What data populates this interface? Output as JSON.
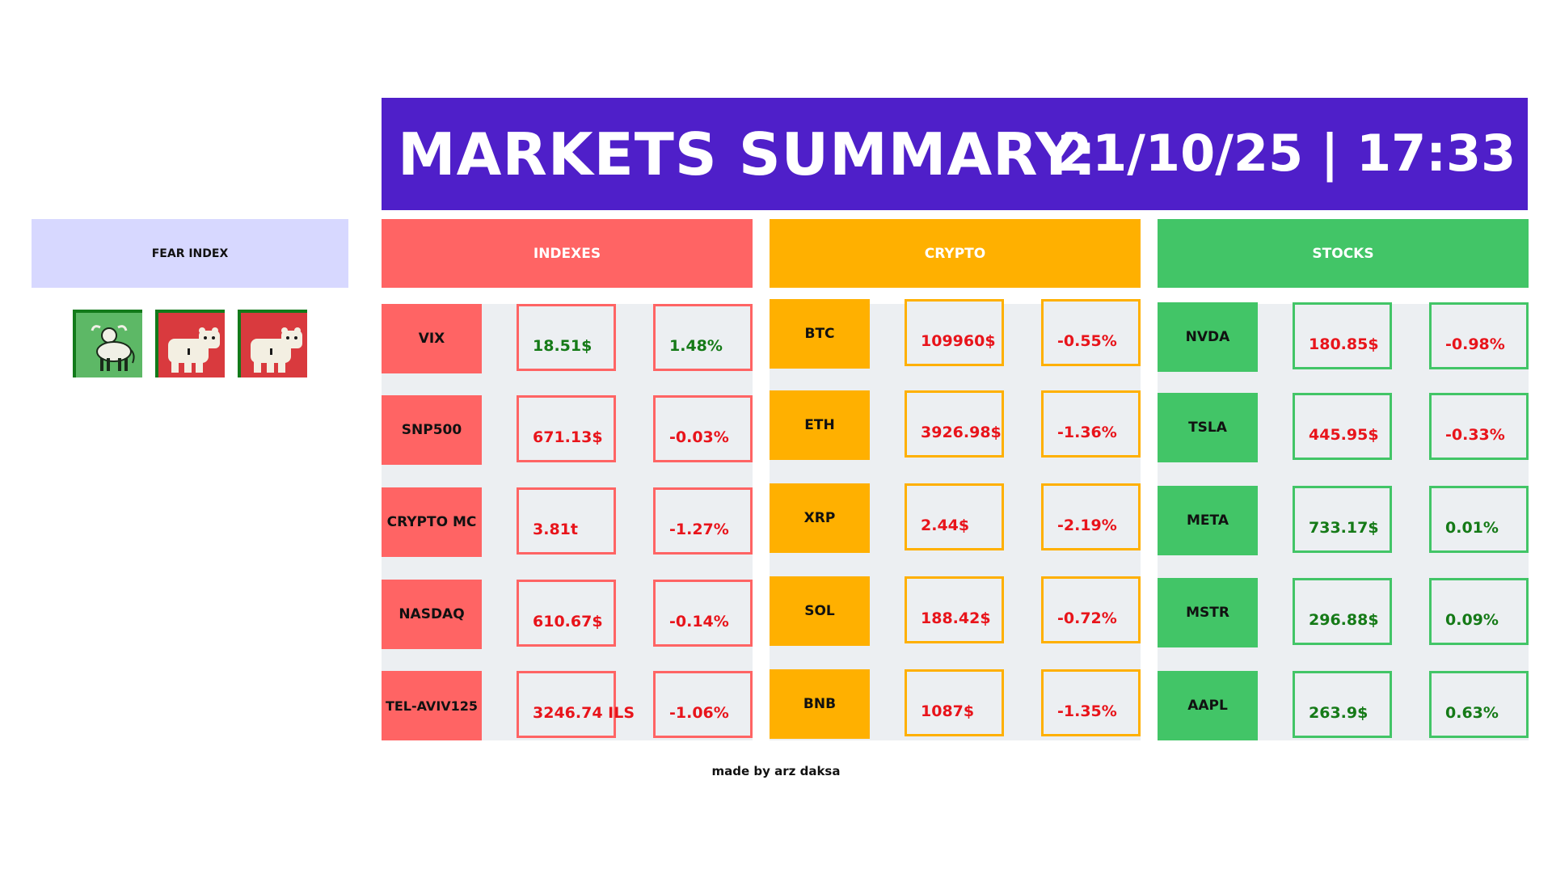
{
  "header": {
    "title": "MARKETS SUMMARY:",
    "datetime": "21/10/25 | 17:33"
  },
  "fear_index": {
    "label": "FEAR INDEX",
    "icons": [
      {
        "name": "bull-icon",
        "color": "#5db866"
      },
      {
        "name": "bear-icon",
        "color": "#d93a3e"
      },
      {
        "name": "bear-icon",
        "color": "#d93a3e"
      }
    ]
  },
  "sections": [
    {
      "title": "INDEXES",
      "color": "#ff6464",
      "rows": [
        {
          "name": "VIX",
          "price": "18.51$",
          "change": "1.48%",
          "price_dir": "up",
          "change_dir": "up"
        },
        {
          "name": "SNP500",
          "price": "671.13$",
          "change": "-0.03%",
          "price_dir": "down",
          "change_dir": "down"
        },
        {
          "name": "CRYPTO MC",
          "price": "3.81t",
          "change": "-1.27%",
          "price_dir": "down",
          "change_dir": "down"
        },
        {
          "name": "NASDAQ",
          "price": "610.67$",
          "change": "-0.14%",
          "price_dir": "down",
          "change_dir": "down"
        },
        {
          "name": "TEL-AVIV125",
          "price": "3246.74 ILS",
          "change": "-1.06%",
          "price_dir": "down",
          "change_dir": "down"
        }
      ]
    },
    {
      "title": "CRYPTO",
      "color": "#ffb000",
      "rows": [
        {
          "name": "BTC",
          "price": "109960$",
          "change": "-0.55%",
          "price_dir": "down",
          "change_dir": "down"
        },
        {
          "name": "ETH",
          "price": "3926.98$",
          "change": "-1.36%",
          "price_dir": "down",
          "change_dir": "down"
        },
        {
          "name": "XRP",
          "price": "2.44$",
          "change": "-2.19%",
          "price_dir": "down",
          "change_dir": "down"
        },
        {
          "name": "SOL",
          "price": "188.42$",
          "change": "-0.72%",
          "price_dir": "down",
          "change_dir": "down"
        },
        {
          "name": "BNB",
          "price": "1087$",
          "change": "-1.35%",
          "price_dir": "down",
          "change_dir": "down"
        }
      ]
    },
    {
      "title": "STOCKS",
      "color": "#42c567",
      "rows": [
        {
          "name": "NVDA",
          "price": "180.85$",
          "change": "-0.98%",
          "price_dir": "down",
          "change_dir": "down"
        },
        {
          "name": "TSLA",
          "price": "445.95$",
          "change": "-0.33%",
          "price_dir": "down",
          "change_dir": "down"
        },
        {
          "name": "META",
          "price": "733.17$",
          "change": "0.01%",
          "price_dir": "up",
          "change_dir": "up"
        },
        {
          "name": "MSTR",
          "price": "296.88$",
          "change": "0.09%",
          "price_dir": "up",
          "change_dir": "up"
        },
        {
          "name": "AAPL",
          "price": "263.9$",
          "change": "0.63%",
          "price_dir": "up",
          "change_dir": "up"
        }
      ]
    }
  ],
  "footer": {
    "credit": "made by arz daksa"
  }
}
